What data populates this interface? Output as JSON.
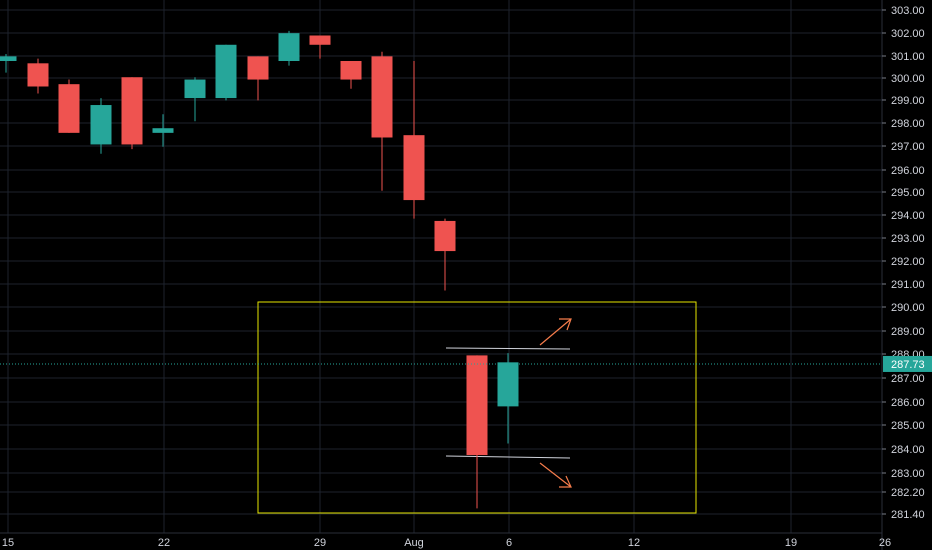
{
  "chart_data": {
    "type": "candlestick",
    "x_tick_labels": [
      {
        "label": "15",
        "index": 0
      },
      {
        "label": "22",
        "index": 5
      },
      {
        "label": "29",
        "index": 10
      },
      {
        "label": "Aug",
        "index": 13
      },
      {
        "label": "6",
        "index": 16
      },
      {
        "label": "12",
        "index": 20
      },
      {
        "label": "19",
        "index": 25
      },
      {
        "label": "26",
        "index": 28.5
      }
    ],
    "y_tick_labels": [
      "303.00",
      "302.00",
      "301.00",
      "300.00",
      "299.00",
      "298.00",
      "297.00",
      "296.00",
      "295.00",
      "294.00",
      "293.00",
      "292.00",
      "291.00",
      "290.00",
      "289.00",
      "288.00",
      "287.00",
      "286.00",
      "285.00",
      "284.00",
      "283.00",
      "282.20",
      "281.40"
    ],
    "ylim": [
      281.0,
      303.4
    ],
    "candles": [
      {
        "o": 300.8,
        "h": 301.1,
        "l": 300.3,
        "c": 301.0
      },
      {
        "o": 300.7,
        "h": 300.9,
        "l": 299.4,
        "c": 299.7
      },
      {
        "o": 299.8,
        "h": 300.0,
        "l": 297.7,
        "c": 297.7
      },
      {
        "o": 297.2,
        "h": 299.2,
        "l": 296.8,
        "c": 298.9
      },
      {
        "o": 300.1,
        "h": 300.1,
        "l": 297.0,
        "c": 297.2
      },
      {
        "o": 297.7,
        "h": 298.5,
        "l": 297.1,
        "c": 297.9
      },
      {
        "o": 299.2,
        "h": 300.1,
        "l": 298.2,
        "c": 300.0
      },
      {
        "o": 299.2,
        "h": 301.5,
        "l": 299.1,
        "c": 301.5
      },
      {
        "o": 301.0,
        "h": 301.0,
        "l": 299.1,
        "c": 300.0
      },
      {
        "o": 300.8,
        "h": 302.1,
        "l": 300.6,
        "c": 302.0
      },
      {
        "o": 301.9,
        "h": 301.9,
        "l": 300.9,
        "c": 301.5
      },
      {
        "o": 300.8,
        "h": 300.8,
        "l": 299.6,
        "c": 300.0
      },
      {
        "o": 301.0,
        "h": 301.2,
        "l": 295.2,
        "c": 297.5
      },
      {
        "o": 297.6,
        "h": 300.8,
        "l": 294.0,
        "c": 294.8
      },
      {
        "o": 293.9,
        "h": 294.0,
        "l": 290.9,
        "c": 292.6
      },
      {
        "o": 288.1,
        "h": 288.1,
        "l": 281.5,
        "c": 283.8
      },
      {
        "o": 285.9,
        "h": 288.2,
        "l": 284.3,
        "c": 287.8
      }
    ],
    "last_price": {
      "label": "287.73",
      "value": 287.73
    },
    "colors": {
      "up": "#26a69a",
      "down": "#ef5350",
      "grid": "#1e222d",
      "box": "#e6e600",
      "arrow": "#f57c4b",
      "line": "#d1d4dc",
      "badge": "#26a69a"
    }
  }
}
